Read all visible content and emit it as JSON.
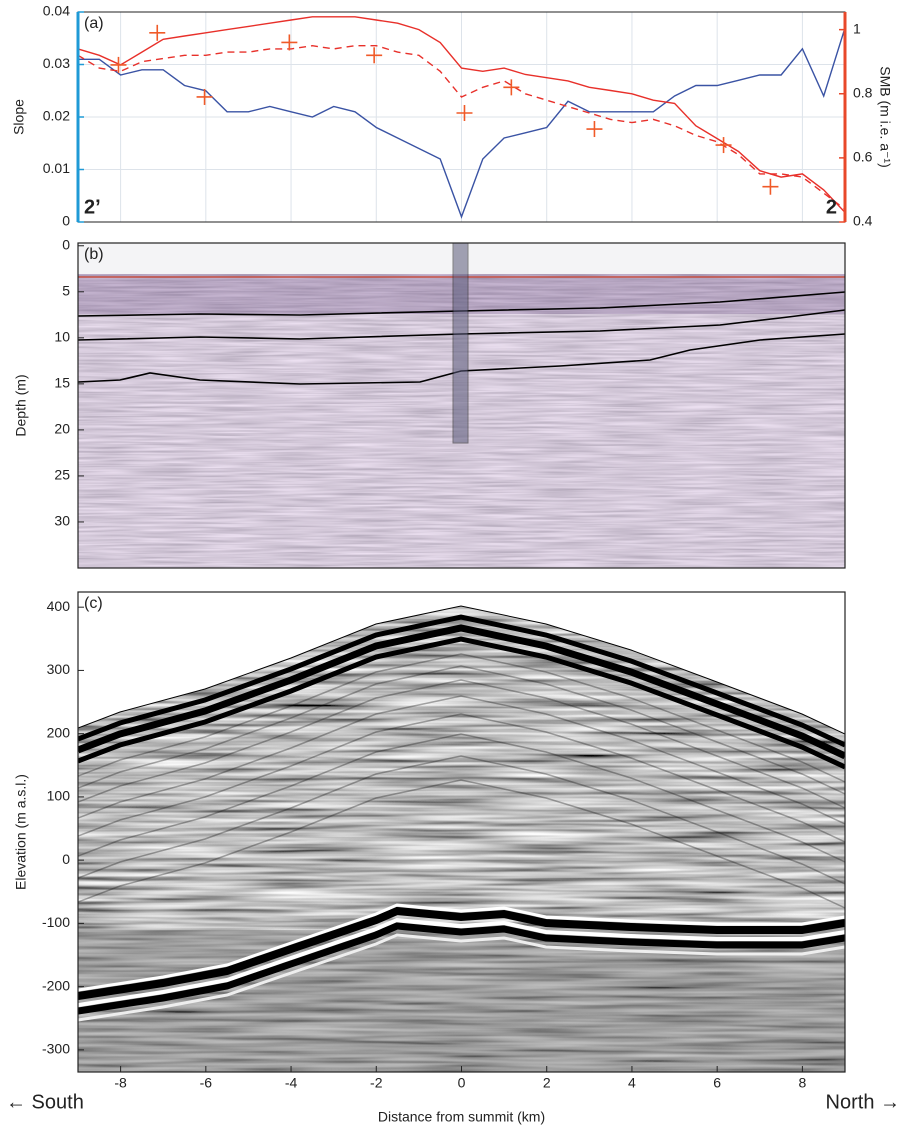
{
  "chart_data": [
    {
      "type": "line",
      "panel_label": "(a)",
      "left_annotation": "2’",
      "right_annotation": "2",
      "ylabel": "Slope",
      "y2label": "SMB (m i.e. a⁻¹)",
      "xlim": [
        -9,
        9
      ],
      "ylim": [
        0,
        0.04
      ],
      "yticks": [
        0,
        0.01,
        0.02,
        0.03,
        0.04
      ],
      "y2lim": [
        0.4,
        1.055
      ],
      "y2ticks": [
        0.4,
        0.6,
        0.8,
        1
      ],
      "grid": true,
      "y_color": "#1f9ad6",
      "y2_color": "#e8482a",
      "x": [
        -9,
        -8.5,
        -8,
        -7.5,
        -7,
        -6.5,
        -6,
        -5.5,
        -5,
        -4.5,
        -4,
        -3.5,
        -3,
        -2.5,
        -2,
        -1.5,
        -1,
        -0.5,
        0,
        0.5,
        1,
        1.5,
        2,
        2.5,
        3,
        3.5,
        4,
        4.5,
        5,
        5.5,
        6,
        6.5,
        7,
        7.5,
        8,
        8.5,
        9
      ],
      "series": [
        {
          "color": "#3a53a4",
          "values": [
            0.031,
            0.031,
            0.028,
            0.029,
            0.029,
            0.026,
            0.025,
            0.021,
            0.021,
            0.022,
            0.021,
            0.02,
            0.022,
            0.021,
            0.018,
            0.016,
            0.014,
            0.012,
            0.001,
            0.012,
            0.016,
            0.017,
            0.018,
            0.023,
            0.021,
            0.021,
            0.021,
            0.021,
            0.024,
            0.026,
            0.026,
            0.027,
            0.028,
            0.028,
            0.033,
            0.024,
            0.037
          ]
        },
        {
          "color": "#e8302a",
          "axis": "y2",
          "values": [
            0.94,
            0.92,
            0.89,
            0.93,
            0.97,
            0.98,
            0.99,
            1.0,
            1.01,
            1.02,
            1.03,
            1.04,
            1.04,
            1.04,
            1.03,
            1.02,
            1.0,
            0.96,
            0.88,
            0.87,
            0.88,
            0.86,
            0.85,
            0.84,
            0.82,
            0.81,
            0.8,
            0.78,
            0.77,
            0.7,
            0.66,
            0.62,
            0.56,
            0.54,
            0.55,
            0.5,
            0.43
          ]
        },
        {
          "color": "#e8302a",
          "axis": "y2",
          "dashed": true,
          "values": [
            0.92,
            0.88,
            0.87,
            0.9,
            0.91,
            0.92,
            0.92,
            0.93,
            0.93,
            0.94,
            0.94,
            0.95,
            0.94,
            0.95,
            0.95,
            0.93,
            0.92,
            0.87,
            0.79,
            0.82,
            0.84,
            0.8,
            0.78,
            0.76,
            0.74,
            0.72,
            0.71,
            0.72,
            0.7,
            0.67,
            0.65,
            0.61,
            0.55,
            0.55,
            0.54,
            0.49,
            0.44
          ]
        }
      ],
      "points": {
        "color": "#f05a28",
        "axis": "y2",
        "x": [
          -8.05,
          -7.14,
          -6.03,
          -4.04,
          -2.05,
          0.07,
          1.17,
          3.12,
          6.15,
          7.25
        ],
        "y": [
          0.89,
          0.99,
          0.79,
          0.96,
          0.92,
          0.74,
          0.82,
          0.69,
          0.64,
          0.51
        ]
      }
    },
    {
      "type": "radargram",
      "panel_label": "(b)",
      "ylabel": "Depth (m)",
      "ylim": [
        -0.3,
        35
      ],
      "reversed": true,
      "yticks": [
        0,
        5,
        10,
        15,
        20,
        25,
        30
      ]
    },
    {
      "type": "radargram",
      "panel_label": "(c)",
      "ylabel": "Elevation (m a.s.l.)",
      "ylim": [
        -335,
        424
      ],
      "yticks": [
        400,
        300,
        200,
        100,
        0,
        -100,
        -200,
        -300
      ],
      "xlim": [
        -9,
        9
      ],
      "xticks": [
        -8,
        -6,
        -4,
        -2,
        0,
        2,
        4,
        6,
        8
      ],
      "xlabel": "Distance from summit (km)",
      "left_label": "← South",
      "right_label": "North →"
    }
  ]
}
